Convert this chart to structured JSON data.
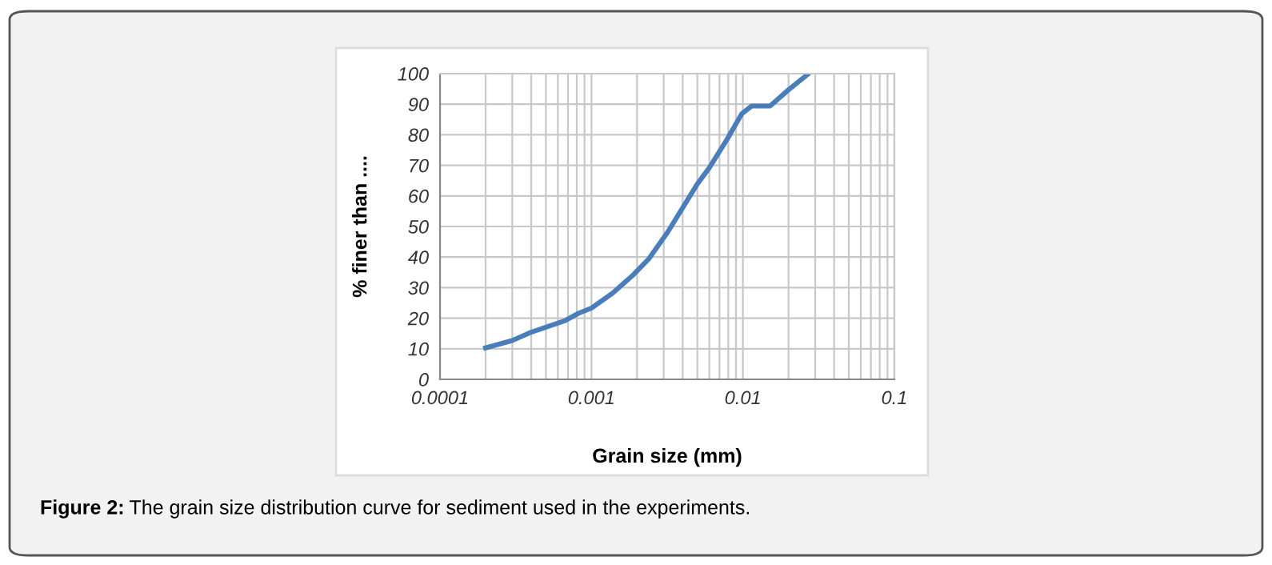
{
  "chart_data": {
    "type": "line",
    "xlabel": "Grain size (mm)",
    "ylabel": "% finer than ....",
    "log": "x",
    "x": [
      0.0002,
      0.0003,
      0.00039,
      0.00067,
      0.00082,
      0.001,
      0.00138,
      0.0019,
      0.0024,
      0.0032,
      0.004,
      0.005,
      0.006,
      0.0079,
      0.0098,
      0.0114,
      0.0151,
      0.0201,
      0.0267
    ],
    "series": [
      {
        "color": "#4a7ebb",
        "values": [
          10.3,
          12.7,
          15.2,
          19.2,
          21.6,
          23.3,
          28.2,
          34.3,
          39.5,
          48.3,
          56.1,
          63.9,
          69.2,
          78.7,
          86.8,
          89.4,
          89.4,
          94.8,
          99.7
        ]
      }
    ],
    "xlim": [
      0.0001,
      0.1
    ],
    "xticks": [
      0.0001,
      0.001,
      0.01,
      0.1
    ],
    "ylim": [
      0,
      100
    ],
    "yticks": [
      0,
      10,
      20,
      30,
      40,
      50,
      60,
      70,
      80,
      90,
      100
    ],
    "grid": true,
    "legend": false,
    "marker": "none",
    "line_style": "solid",
    "annotations": [
      "Figure 2: The grain size distribution curve for sediment used in the experiments."
    ]
  }
}
